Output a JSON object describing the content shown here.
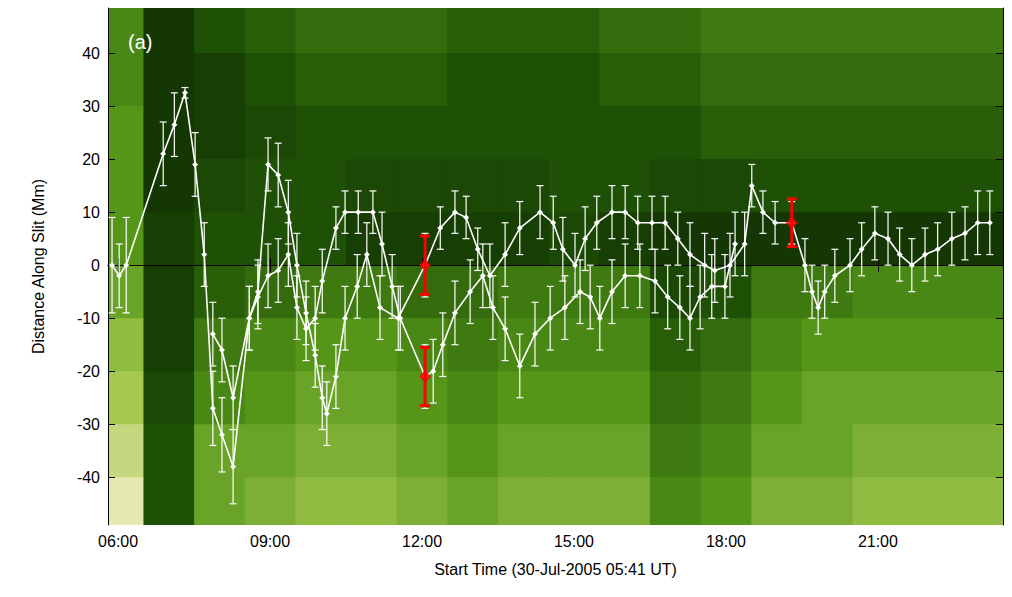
{
  "chart_data": {
    "type": "line",
    "panel_label": "(a)",
    "xlabel": "Start Time (30-Jul-2005 05:41 UT)",
    "ylabel": "Distance Along Slit (Mm)",
    "xlim": [
      5.8,
      23.47
    ],
    "xticks": [
      {
        "value": 6,
        "label": "06:00"
      },
      {
        "value": 9,
        "label": "09:00"
      },
      {
        "value": 12,
        "label": "12:00"
      },
      {
        "value": 15,
        "label": "15:00"
      },
      {
        "value": 18,
        "label": "18:00"
      },
      {
        "value": 21,
        "label": "21:00"
      }
    ],
    "ylim": [
      -49,
      48.5
    ],
    "yticks": [
      -40,
      -30,
      -20,
      -10,
      0,
      10,
      20,
      30,
      40
    ],
    "grid": false,
    "background": {
      "x": [
        6,
        7,
        8,
        9,
        10,
        11,
        12,
        13,
        14,
        15,
        16,
        17,
        18,
        19,
        20,
        21,
        22,
        23
      ],
      "y": [
        45,
        35,
        25,
        15,
        5,
        -5,
        -15,
        -25,
        -35,
        -45
      ],
      "intensity": [
        [
          0.5,
          0.15,
          0.3,
          0.35,
          0.4,
          0.4,
          0.4,
          0.35,
          0.35,
          0.35,
          0.4,
          0.4,
          0.45,
          0.45,
          0.45,
          0.45,
          0.45,
          0.45
        ],
        [
          0.5,
          0.15,
          0.2,
          0.3,
          0.35,
          0.35,
          0.35,
          0.3,
          0.3,
          0.3,
          0.35,
          0.35,
          0.4,
          0.4,
          0.4,
          0.4,
          0.4,
          0.4
        ],
        [
          0.55,
          0.15,
          0.2,
          0.25,
          0.3,
          0.3,
          0.3,
          0.3,
          0.3,
          0.3,
          0.3,
          0.3,
          0.35,
          0.35,
          0.35,
          0.35,
          0.35,
          0.35
        ],
        [
          0.55,
          0.15,
          0.25,
          0.3,
          0.3,
          0.25,
          0.25,
          0.25,
          0.25,
          0.3,
          0.3,
          0.25,
          0.25,
          0.3,
          0.3,
          0.3,
          0.3,
          0.3
        ],
        [
          0.55,
          0.2,
          0.3,
          0.3,
          0.3,
          0.2,
          0.2,
          0.2,
          0.2,
          0.25,
          0.2,
          0.15,
          0.15,
          0.15,
          0.15,
          0.15,
          0.15,
          0.15
        ],
        [
          0.6,
          0.2,
          0.35,
          0.4,
          0.45,
          0.45,
          0.4,
          0.4,
          0.45,
          0.45,
          0.45,
          0.25,
          0.3,
          0.45,
          0.45,
          0.5,
          0.5,
          0.5
        ],
        [
          0.7,
          0.2,
          0.45,
          0.5,
          0.55,
          0.55,
          0.5,
          0.45,
          0.5,
          0.5,
          0.5,
          0.35,
          0.4,
          0.5,
          0.55,
          0.55,
          0.55,
          0.55
        ],
        [
          0.75,
          0.25,
          0.5,
          0.55,
          0.6,
          0.6,
          0.55,
          0.5,
          0.55,
          0.55,
          0.55,
          0.4,
          0.45,
          0.55,
          0.6,
          0.6,
          0.6,
          0.6
        ],
        [
          0.85,
          0.3,
          0.6,
          0.6,
          0.65,
          0.65,
          0.6,
          0.55,
          0.6,
          0.6,
          0.6,
          0.45,
          0.5,
          0.6,
          0.6,
          0.65,
          0.65,
          0.65
        ],
        [
          0.95,
          0.3,
          0.6,
          0.65,
          0.7,
          0.7,
          0.65,
          0.6,
          0.65,
          0.65,
          0.65,
          0.5,
          0.55,
          0.65,
          0.65,
          0.7,
          0.7,
          0.7
        ]
      ]
    },
    "series": [
      {
        "type": "line",
        "color": "#ffffff",
        "marker": "diamond",
        "line_style": "solid",
        "x": [
          5.88,
          6.02,
          6.16,
          6.89,
          7.11,
          7.32,
          7.52,
          7.7,
          7.87,
          8.05,
          8.27,
          8.59,
          8.76,
          8.96,
          9.16,
          9.36,
          9.53,
          9.71,
          9.89,
          10.03,
          10.12,
          10.3,
          10.48,
          10.72,
          10.91,
          11.17,
          11.53,
          12.06,
          12.36,
          12.65,
          12.87,
          13.1,
          13.34,
          13.64,
          13.93,
          14.33,
          14.59,
          14.78,
          15.02,
          15.22,
          15.45,
          15.75,
          16.01,
          16.26,
          16.54,
          16.8,
          17.05,
          17.29,
          17.58,
          17.78,
          18.08,
          18.37,
          18.51,
          18.73,
          18.97,
          19.3,
          19.56,
          19.7,
          19.82,
          19.95,
          20.15,
          20.45,
          20.68,
          20.94,
          21.2,
          21.43,
          21.67,
          21.93,
          22.18,
          22.46,
          22.72,
          22.97,
          23.21
        ],
        "values": [
          0,
          -2,
          0,
          21,
          26.5,
          32.5,
          19,
          2,
          -27,
          -32,
          -38,
          -10,
          -5,
          19,
          17,
          10,
          0,
          -9,
          -17,
          -25,
          -28,
          -21,
          -10,
          -4,
          2,
          -8,
          -10,
          0,
          7,
          10,
          9,
          3,
          -2,
          2,
          7,
          10,
          8,
          3,
          0,
          5,
          8,
          10,
          10,
          8,
          8,
          8,
          5,
          2,
          0,
          -1,
          0,
          4,
          15,
          10,
          8,
          8,
          0,
          -5,
          -8,
          -5,
          -2,
          0,
          3,
          6,
          5,
          2,
          0,
          2,
          3,
          5,
          6,
          8,
          8
        ],
        "errors": [
          9,
          6,
          9,
          6,
          6,
          1,
          6,
          6,
          7,
          7,
          7,
          6,
          6,
          5,
          6,
          6,
          6,
          6,
          6,
          6,
          6,
          6,
          6,
          6,
          6,
          6,
          6,
          6,
          4,
          4,
          4,
          4,
          6,
          6,
          5,
          5,
          5,
          6,
          6,
          6,
          5,
          5,
          5,
          5,
          5,
          5,
          5,
          6,
          6,
          6,
          6,
          6,
          4,
          4,
          4,
          4,
          5,
          5,
          5,
          5,
          5,
          5,
          5,
          5,
          5,
          5,
          5,
          5,
          5,
          5,
          5,
          6,
          6
        ]
      },
      {
        "type": "line",
        "color": "#ffffff",
        "marker": "diamond",
        "line_style": "solid",
        "x": [
          7.87,
          8.05,
          8.27,
          8.59,
          8.76,
          8.96,
          9.16,
          9.36,
          9.53,
          9.71,
          9.89,
          10.03,
          10.3,
          10.48,
          10.74,
          11.03,
          11.21,
          11.41,
          11.57,
          12.06,
          12.22,
          12.41,
          12.65,
          12.95,
          13.2,
          13.4,
          13.64,
          13.93,
          14.23,
          14.53,
          14.82,
          15.12,
          15.32,
          15.51,
          15.75,
          16.01,
          16.3,
          16.6,
          16.85,
          17.09,
          17.29,
          17.49,
          17.72,
          17.98,
          18.18
        ],
        "values": [
          -13,
          -16,
          -25,
          -10,
          -6,
          -2,
          -1,
          2,
          -8,
          -12,
          -10,
          -3,
          7,
          10,
          10,
          10,
          4,
          -4,
          -10,
          -21,
          -20,
          -15,
          -9,
          -5,
          -2,
          -8,
          -12,
          -19,
          -13,
          -10,
          -8,
          -5,
          -6,
          -10,
          -5,
          -2,
          -2,
          -3,
          -6,
          -8,
          -10,
          -6,
          -4,
          -4,
          4
        ],
        "errors": [
          6,
          6,
          6,
          6,
          6,
          6,
          6,
          6,
          6,
          6,
          6,
          6,
          4,
          4,
          4,
          4,
          6,
          6,
          6,
          6,
          6,
          6,
          6,
          6,
          6,
          6,
          6,
          6,
          6,
          6,
          6,
          6,
          6,
          6,
          6,
          6,
          6,
          6,
          6,
          6,
          6,
          6,
          6,
          6,
          6
        ]
      },
      {
        "type": "scatter",
        "color": "#ff0000",
        "marker": "diamond",
        "x": [
          12.06,
          12.06,
          19.3
        ],
        "values": [
          0,
          -21,
          8
        ],
        "errors": [
          5.5,
          5.5,
          4.5
        ]
      }
    ]
  }
}
